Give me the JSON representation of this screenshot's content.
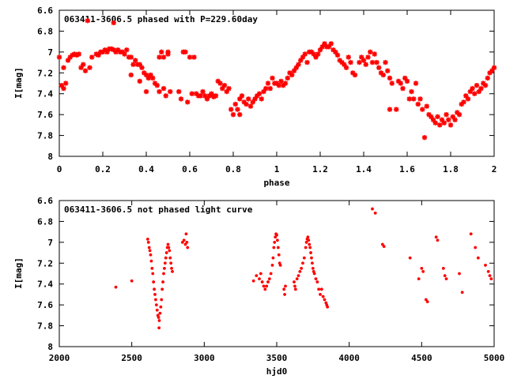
{
  "chart_data": [
    {
      "type": "scatter",
      "title": "063411-3606.5 phased with P=229.60day",
      "xlabel": "phase",
      "ylabel": "I[mag]",
      "xlim": [
        0,
        2
      ],
      "ylim": [
        8,
        6.6
      ],
      "y_reversed": true,
      "grid": false,
      "xticks": [
        0,
        0.2,
        0.4,
        0.6,
        0.8,
        1,
        1.2,
        1.4,
        1.6,
        1.8,
        2
      ],
      "yticks": [
        6.6,
        6.8,
        7,
        7.2,
        7.4,
        7.6,
        7.8,
        8
      ],
      "xtick_labels": [
        "0",
        "0.2",
        "0.4",
        "0.6",
        "0.8",
        "1",
        "1.2",
        "1.4",
        "1.6",
        "1.8",
        "2"
      ],
      "ytick_labels": [
        "6.6",
        "6.8",
        "7",
        "7.2",
        "7.4",
        "7.6",
        "7.8",
        "8"
      ],
      "marker": "star",
      "color": "#ff0000",
      "points": [
        [
          0.0,
          7.05
        ],
        [
          0.01,
          7.32
        ],
        [
          0.02,
          7.35
        ],
        [
          0.03,
          7.3
        ],
        [
          0.02,
          7.15
        ],
        [
          0.04,
          7.08
        ],
        [
          0.05,
          7.05
        ],
        [
          0.06,
          7.03
        ],
        [
          0.07,
          7.02
        ],
        [
          0.08,
          7.03
        ],
        [
          0.09,
          7.02
        ],
        [
          0.1,
          7.15
        ],
        [
          0.11,
          7.12
        ],
        [
          0.12,
          7.18
        ],
        [
          0.13,
          6.7
        ],
        [
          0.14,
          7.15
        ],
        [
          0.15,
          7.05
        ],
        [
          0.17,
          7.02
        ],
        [
          0.18,
          7.03
        ],
        [
          0.19,
          7.0
        ],
        [
          0.2,
          7.0
        ],
        [
          0.21,
          6.98
        ],
        [
          0.22,
          7.0
        ],
        [
          0.23,
          6.97
        ],
        [
          0.24,
          6.97
        ],
        [
          0.25,
          6.98
        ],
        [
          0.25,
          6.72
        ],
        [
          0.26,
          7.0
        ],
        [
          0.27,
          6.98
        ],
        [
          0.28,
          7.0
        ],
        [
          0.29,
          7.0
        ],
        [
          0.3,
          7.02
        ],
        [
          0.31,
          6.98
        ],
        [
          0.32,
          7.05
        ],
        [
          0.33,
          7.05
        ],
        [
          0.34,
          7.12
        ],
        [
          0.33,
          7.22
        ],
        [
          0.35,
          7.08
        ],
        [
          0.36,
          7.12
        ],
        [
          0.37,
          7.12
        ],
        [
          0.37,
          7.28
        ],
        [
          0.38,
          7.15
        ],
        [
          0.39,
          7.2
        ],
        [
          0.4,
          7.22
        ],
        [
          0.4,
          7.38
        ],
        [
          0.41,
          7.25
        ],
        [
          0.42,
          7.22
        ],
        [
          0.43,
          7.25
        ],
        [
          0.44,
          7.3
        ],
        [
          0.45,
          7.32
        ],
        [
          0.46,
          7.38
        ],
        [
          0.46,
          7.05
        ],
        [
          0.47,
          7.0
        ],
        [
          0.48,
          7.35
        ],
        [
          0.48,
          7.05
        ],
        [
          0.49,
          7.42
        ],
        [
          0.5,
          7.02
        ],
        [
          0.5,
          7.0
        ],
        [
          0.51,
          7.38
        ],
        [
          0.55,
          7.38
        ],
        [
          0.56,
          7.45
        ],
        [
          0.57,
          7.0
        ],
        [
          0.58,
          7.0
        ],
        [
          0.59,
          7.48
        ],
        [
          0.6,
          7.05
        ],
        [
          0.61,
          7.4
        ],
        [
          0.62,
          7.05
        ],
        [
          0.63,
          7.4
        ],
        [
          0.64,
          7.42
        ],
        [
          0.65,
          7.42
        ],
        [
          0.66,
          7.38
        ],
        [
          0.67,
          7.42
        ],
        [
          0.68,
          7.45
        ],
        [
          0.69,
          7.42
        ],
        [
          0.7,
          7.4
        ],
        [
          0.71,
          7.43
        ],
        [
          0.72,
          7.42
        ],
        [
          0.73,
          7.28
        ],
        [
          0.74,
          7.3
        ],
        [
          0.75,
          7.35
        ],
        [
          0.76,
          7.32
        ],
        [
          0.77,
          7.38
        ],
        [
          0.78,
          7.35
        ],
        [
          0.79,
          7.55
        ],
        [
          0.8,
          7.6
        ],
        [
          0.81,
          7.5
        ],
        [
          0.82,
          7.55
        ],
        [
          0.83,
          7.45
        ],
        [
          0.83,
          7.6
        ],
        [
          0.84,
          7.42
        ],
        [
          0.85,
          7.48
        ],
        [
          0.86,
          7.5
        ],
        [
          0.87,
          7.45
        ],
        [
          0.88,
          7.52
        ],
        [
          0.89,
          7.48
        ],
        [
          0.9,
          7.45
        ],
        [
          0.91,
          7.42
        ],
        [
          0.92,
          7.4
        ],
        [
          0.93,
          7.45
        ],
        [
          0.94,
          7.38
        ],
        [
          0.95,
          7.35
        ],
        [
          0.96,
          7.3
        ],
        [
          0.97,
          7.35
        ],
        [
          0.98,
          7.25
        ],
        [
          0.99,
          7.3
        ],
        [
          1.0,
          7.3
        ],
        [
          1.01,
          7.32
        ],
        [
          1.02,
          7.28
        ],
        [
          1.03,
          7.32
        ],
        [
          1.04,
          7.3
        ],
        [
          1.05,
          7.25
        ],
        [
          1.06,
          7.2
        ],
        [
          1.07,
          7.22
        ],
        [
          1.08,
          7.18
        ],
        [
          1.09,
          7.15
        ],
        [
          1.1,
          7.12
        ],
        [
          1.11,
          7.08
        ],
        [
          1.12,
          7.05
        ],
        [
          1.13,
          7.02
        ],
        [
          1.14,
          7.1
        ],
        [
          1.15,
          7.0
        ],
        [
          1.16,
          7.0
        ],
        [
          1.17,
          7.02
        ],
        [
          1.18,
          7.05
        ],
        [
          1.19,
          7.02
        ],
        [
          1.2,
          6.98
        ],
        [
          1.21,
          6.95
        ],
        [
          1.22,
          6.92
        ],
        [
          1.23,
          6.95
        ],
        [
          1.24,
          6.95
        ],
        [
          1.25,
          6.92
        ],
        [
          1.26,
          6.98
        ],
        [
          1.27,
          7.0
        ],
        [
          1.28,
          7.03
        ],
        [
          1.29,
          7.08
        ],
        [
          1.3,
          7.1
        ],
        [
          1.31,
          7.12
        ],
        [
          1.32,
          7.15
        ],
        [
          1.33,
          7.05
        ],
        [
          1.34,
          7.1
        ],
        [
          1.35,
          7.2
        ],
        [
          1.36,
          7.22
        ],
        [
          1.38,
          7.1
        ],
        [
          1.39,
          7.05
        ],
        [
          1.4,
          7.08
        ],
        [
          1.41,
          7.12
        ],
        [
          1.42,
          7.05
        ],
        [
          1.43,
          7.0
        ],
        [
          1.44,
          7.1
        ],
        [
          1.45,
          7.02
        ],
        [
          1.46,
          7.1
        ],
        [
          1.47,
          7.15
        ],
        [
          1.48,
          7.2
        ],
        [
          1.49,
          7.22
        ],
        [
          1.5,
          7.1
        ],
        [
          1.51,
          7.18
        ],
        [
          1.52,
          7.25
        ],
        [
          1.53,
          7.3
        ],
        [
          1.52,
          7.55
        ],
        [
          1.55,
          7.55
        ],
        [
          1.56,
          7.28
        ],
        [
          1.57,
          7.3
        ],
        [
          1.58,
          7.35
        ],
        [
          1.59,
          7.25
        ],
        [
          1.6,
          7.28
        ],
        [
          1.61,
          7.45
        ],
        [
          1.62,
          7.38
        ],
        [
          1.63,
          7.45
        ],
        [
          1.64,
          7.3
        ],
        [
          1.65,
          7.5
        ],
        [
          1.66,
          7.45
        ],
        [
          1.67,
          7.55
        ],
        [
          1.68,
          7.82
        ],
        [
          1.69,
          7.52
        ],
        [
          1.7,
          7.6
        ],
        [
          1.71,
          7.62
        ],
        [
          1.72,
          7.65
        ],
        [
          1.73,
          7.68
        ],
        [
          1.74,
          7.62
        ],
        [
          1.75,
          7.7
        ],
        [
          1.76,
          7.65
        ],
        [
          1.77,
          7.68
        ],
        [
          1.78,
          7.6
        ],
        [
          1.79,
          7.65
        ],
        [
          1.8,
          7.7
        ],
        [
          1.81,
          7.62
        ],
        [
          1.82,
          7.65
        ],
        [
          1.83,
          7.58
        ],
        [
          1.84,
          7.6
        ],
        [
          1.85,
          7.5
        ],
        [
          1.86,
          7.48
        ],
        [
          1.87,
          7.42
        ],
        [
          1.88,
          7.45
        ],
        [
          1.89,
          7.38
        ],
        [
          1.9,
          7.35
        ],
        [
          1.91,
          7.4
        ],
        [
          1.92,
          7.32
        ],
        [
          1.93,
          7.38
        ],
        [
          1.94,
          7.35
        ],
        [
          1.95,
          7.3
        ],
        [
          1.96,
          7.32
        ],
        [
          1.97,
          7.25
        ],
        [
          1.98,
          7.2
        ],
        [
          1.99,
          7.18
        ],
        [
          2.0,
          7.15
        ]
      ]
    },
    {
      "type": "scatter",
      "title": "063411-3606.5 not phased light curve",
      "xlabel": "hjd0",
      "ylabel": "I[mag]",
      "xlim": [
        2000,
        5000
      ],
      "ylim": [
        8,
        6.6
      ],
      "y_reversed": true,
      "grid": false,
      "xticks": [
        2000,
        2500,
        3000,
        3500,
        4000,
        4500,
        5000
      ],
      "yticks": [
        6.6,
        6.8,
        7,
        7.2,
        7.4,
        7.6,
        7.8,
        8
      ],
      "xtick_labels": [
        "2000",
        "2500",
        "3000",
        "3500",
        "4000",
        "4500",
        "5000"
      ],
      "ytick_labels": [
        "6.6",
        "6.8",
        "7",
        "7.2",
        "7.4",
        "7.6",
        "7.8",
        "8"
      ],
      "marker": "dot",
      "color": "#ff0000",
      "points": [
        [
          2390,
          7.43
        ],
        [
          2500,
          7.37
        ],
        [
          2610,
          6.97
        ],
        [
          2615,
          7.0
        ],
        [
          2620,
          7.05
        ],
        [
          2625,
          7.08
        ],
        [
          2630,
          7.12
        ],
        [
          2635,
          7.18
        ],
        [
          2640,
          7.25
        ],
        [
          2645,
          7.3
        ],
        [
          2650,
          7.38
        ],
        [
          2655,
          7.45
        ],
        [
          2660,
          7.5
        ],
        [
          2665,
          7.55
        ],
        [
          2670,
          7.6
        ],
        [
          2675,
          7.65
        ],
        [
          2680,
          7.7
        ],
        [
          2685,
          7.72
        ],
        [
          2690,
          7.75
        ],
        [
          2688,
          7.82
        ],
        [
          2695,
          7.68
        ],
        [
          2700,
          7.62
        ],
        [
          2705,
          7.55
        ],
        [
          2710,
          7.45
        ],
        [
          2715,
          7.38
        ],
        [
          2720,
          7.3
        ],
        [
          2725,
          7.25
        ],
        [
          2730,
          7.2
        ],
        [
          2735,
          7.15
        ],
        [
          2740,
          7.1
        ],
        [
          2745,
          7.05
        ],
        [
          2750,
          7.02
        ],
        [
          2755,
          7.05
        ],
        [
          2760,
          7.08
        ],
        [
          2765,
          7.15
        ],
        [
          2770,
          7.2
        ],
        [
          2775,
          7.25
        ],
        [
          2780,
          7.28
        ],
        [
          2850,
          7.0
        ],
        [
          2860,
          6.98
        ],
        [
          2870,
          7.02
        ],
        [
          2875,
          6.92
        ],
        [
          2880,
          7.0
        ],
        [
          2885,
          7.05
        ],
        [
          3340,
          7.37
        ],
        [
          3360,
          7.32
        ],
        [
          3380,
          7.35
        ],
        [
          3390,
          7.3
        ],
        [
          3400,
          7.38
        ],
        [
          3410,
          7.42
        ],
        [
          3420,
          7.45
        ],
        [
          3430,
          7.42
        ],
        [
          3440,
          7.38
        ],
        [
          3450,
          7.35
        ],
        [
          3460,
          7.3
        ],
        [
          3470,
          7.22
        ],
        [
          3475,
          7.15
        ],
        [
          3480,
          7.05
        ],
        [
          3485,
          7.0
        ],
        [
          3490,
          6.95
        ],
        [
          3495,
          6.92
        ],
        [
          3500,
          6.93
        ],
        [
          3505,
          6.98
        ],
        [
          3510,
          7.05
        ],
        [
          3515,
          7.12
        ],
        [
          3520,
          7.2
        ],
        [
          3525,
          7.22
        ],
        [
          3550,
          7.45
        ],
        [
          3555,
          7.5
        ],
        [
          3560,
          7.42
        ],
        [
          3620,
          7.38
        ],
        [
          3625,
          7.42
        ],
        [
          3630,
          7.45
        ],
        [
          3640,
          7.35
        ],
        [
          3650,
          7.32
        ],
        [
          3660,
          7.28
        ],
        [
          3670,
          7.25
        ],
        [
          3680,
          7.2
        ],
        [
          3690,
          7.15
        ],
        [
          3700,
          7.05
        ],
        [
          3705,
          7.0
        ],
        [
          3710,
          6.97
        ],
        [
          3715,
          6.95
        ],
        [
          3720,
          6.98
        ],
        [
          3725,
          7.02
        ],
        [
          3730,
          7.05
        ],
        [
          3735,
          7.1
        ],
        [
          3740,
          7.15
        ],
        [
          3745,
          7.2
        ],
        [
          3750,
          7.25
        ],
        [
          3755,
          7.28
        ],
        [
          3760,
          7.3
        ],
        [
          3770,
          7.35
        ],
        [
          3780,
          7.38
        ],
        [
          3790,
          7.45
        ],
        [
          3800,
          7.5
        ],
        [
          3810,
          7.45
        ],
        [
          3820,
          7.52
        ],
        [
          3830,
          7.55
        ],
        [
          3840,
          7.58
        ],
        [
          3845,
          7.6
        ],
        [
          3850,
          7.62
        ],
        [
          4160,
          6.68
        ],
        [
          4180,
          6.72
        ],
        [
          4230,
          7.02
        ],
        [
          4240,
          7.04
        ],
        [
          4420,
          7.15
        ],
        [
          4480,
          7.35
        ],
        [
          4500,
          7.25
        ],
        [
          4510,
          7.28
        ],
        [
          4530,
          7.55
        ],
        [
          4540,
          7.57
        ],
        [
          4600,
          6.95
        ],
        [
          4610,
          6.98
        ],
        [
          4650,
          7.25
        ],
        [
          4660,
          7.32
        ],
        [
          4670,
          7.35
        ],
        [
          4760,
          7.3
        ],
        [
          4780,
          7.48
        ],
        [
          4840,
          6.92
        ],
        [
          4870,
          7.05
        ],
        [
          4890,
          7.15
        ],
        [
          4940,
          7.22
        ],
        [
          4960,
          7.28
        ],
        [
          4970,
          7.32
        ],
        [
          4980,
          7.35
        ]
      ]
    }
  ]
}
